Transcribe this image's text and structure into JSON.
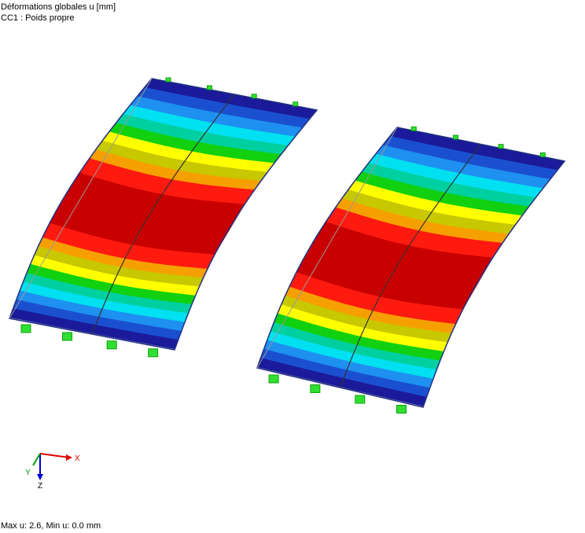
{
  "header": {
    "title": "Déformations globales u [mm]",
    "subtitle": "CC1 : Poids propre"
  },
  "axes": {
    "x": "X",
    "y": "Y",
    "z": "Z"
  },
  "footer": {
    "summary": "Max u: 2.6, Min u: 0.0 mm"
  }
}
